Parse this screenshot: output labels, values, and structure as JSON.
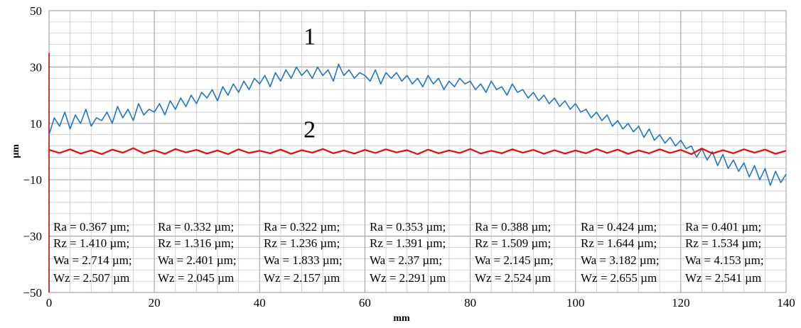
{
  "chart_data": {
    "type": "line",
    "title": "",
    "xlabel": "mm",
    "ylabel": "µm",
    "xlim": [
      0,
      140
    ],
    "ylim": [
      -50,
      50
    ],
    "x_ticks": [
      "0",
      "20",
      "40",
      "60",
      "80",
      "100",
      "120",
      "140"
    ],
    "y_ticks": [
      "50",
      "30",
      "10",
      "−10",
      "−30",
      "−50"
    ],
    "grid": true,
    "colors": {
      "series_1": "#1f77c4",
      "series_2": "#ff0000",
      "grid": "#c8c8c8"
    },
    "annotations": [
      {
        "text": "1",
        "x": 49.5,
        "y": 41
      },
      {
        "text": "2",
        "x": 49.5,
        "y": 8
      }
    ],
    "series": [
      {
        "label": "1",
        "x_step": 1,
        "values": [
          6,
          12,
          9,
          14,
          8,
          13,
          10,
          15,
          9,
          12,
          11,
          14,
          10,
          16,
          12,
          15,
          11,
          17,
          13,
          15,
          14,
          17,
          13,
          18,
          15,
          19,
          16,
          20,
          17,
          21,
          19,
          22,
          18,
          23,
          20,
          24,
          21,
          25,
          22,
          26,
          24,
          27,
          23,
          28,
          25,
          29,
          26,
          30,
          27,
          29,
          26,
          30,
          27,
          29,
          25,
          31,
          27,
          29,
          26,
          28,
          27,
          25,
          29,
          24,
          28,
          26,
          28,
          25,
          27,
          24,
          26,
          23,
          27,
          24,
          26,
          22,
          25,
          23,
          26,
          24,
          25,
          22,
          24,
          21,
          25,
          22,
          23,
          20,
          24,
          21,
          22,
          19,
          21,
          18,
          20,
          17,
          19,
          16,
          18,
          15,
          17,
          14,
          15,
          12,
          14,
          11,
          13,
          9,
          11,
          8,
          10,
          7,
          9,
          5,
          8,
          4,
          6,
          3,
          5,
          2,
          4,
          1,
          2,
          -2,
          1,
          -3,
          0,
          -5,
          -1,
          -6,
          -3,
          -7,
          -4,
          -9,
          -5,
          -10,
          -6,
          -12,
          -7,
          -11,
          -8
        ]
      },
      {
        "label": "2",
        "x_step": 2,
        "values": [
          0.6,
          -0.5,
          0.8,
          -0.7,
          0.4,
          -0.9,
          0.7,
          -0.4,
          1.2,
          -0.6,
          0.5,
          -0.8,
          0.9,
          -0.3,
          0.6,
          -0.7,
          0.4,
          -0.9,
          0.8,
          -0.5,
          0.3,
          -0.6,
          0.7,
          -0.8,
          0.5,
          -0.4,
          0.9,
          -0.6,
          0.4,
          -0.7,
          0.6,
          -0.5,
          0.8,
          -0.3,
          0.5,
          -0.9,
          0.7,
          -0.6,
          0.4,
          -0.5,
          0.9,
          -0.7,
          0.3,
          -0.6,
          0.8,
          -0.4,
          0.6,
          -0.8,
          0.5,
          -0.7,
          0.4,
          -0.6,
          0.9,
          -0.5,
          0.7,
          -0.8,
          0.4,
          -0.6,
          0.8,
          -0.5,
          0.6,
          -0.9,
          1.1,
          -0.7,
          0.5,
          -0.6,
          0.8,
          -0.4,
          0.7,
          -0.8,
          0.3
        ]
      }
    ]
  },
  "parameters": [
    [
      "Ra = 0.367 µm;",
      "Rz = 1.410 µm;",
      "Wa = 2.714 µm;",
      "Wz = 2.507 µm"
    ],
    [
      "Ra = 0.332 µm;",
      "Rz = 1.316 µm;",
      "Wa = 2.401 µm;",
      "Wz = 2.045 µm"
    ],
    [
      "Ra = 0.322 µm;",
      "Rz = 1.236 µm;",
      "Wa = 1.833 µm;",
      "Wz = 2.157 µm"
    ],
    [
      "Ra = 0.353 µm;",
      "Rz = 1.391 µm;",
      "Wa = 2.37 µm;",
      "Wz = 2.291 µm"
    ],
    [
      "Ra = 0.388 µm;",
      "Rz = 1.509 µm;",
      "Wa = 2.145 µm;",
      "Wz = 2.524 µm"
    ],
    [
      "Ra = 0.424 µm;",
      "Rz = 1.644 µm;",
      "Wa = 3.182 µm;",
      "Wz = 2.655 µm"
    ],
    [
      "Ra = 0.401 µm;",
      "Rz = 1.534 µm;",
      "Wa = 4.153 µm;",
      "Wz = 2.541 µm"
    ]
  ]
}
